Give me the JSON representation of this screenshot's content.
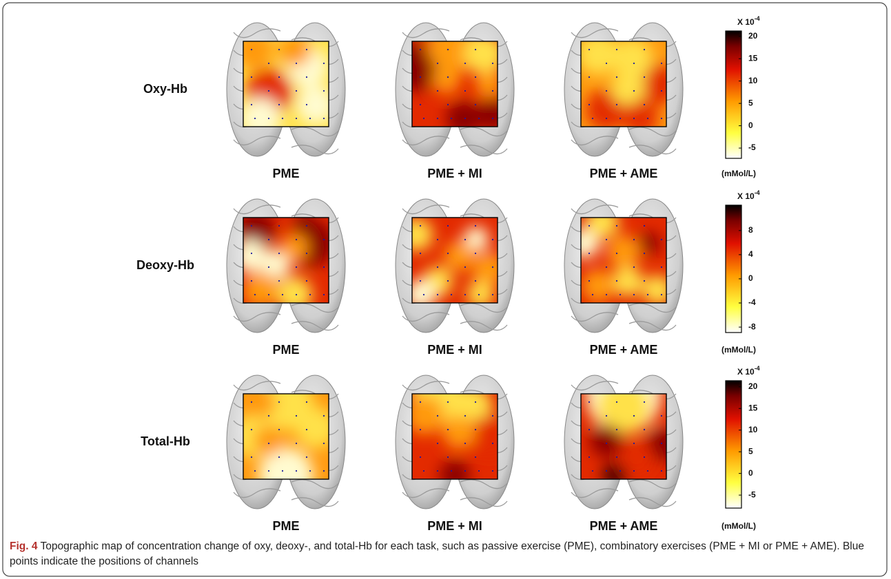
{
  "figure": {
    "rows": [
      {
        "label": "Oxy-Hb",
        "panels": [
          "PME",
          "PME + MI",
          "PME + AME"
        ],
        "colorbar": {
          "multiplier": {
            "base": "X 10",
            "exponent": "-4"
          },
          "lim": [
            -7.3,
            21.2
          ],
          "ticks": [
            -5,
            0,
            5,
            10,
            15,
            20
          ],
          "unit": "(mMol/L)"
        }
      },
      {
        "label": "Deoxy-Hb",
        "panels": [
          "PME",
          "PME + MI",
          "PME + AME"
        ],
        "colorbar": {
          "multiplier": {
            "base": "X 10",
            "exponent": "-4"
          },
          "lim": [
            -8.9,
            12.2
          ],
          "ticks": [
            -8,
            -4,
            0,
            4,
            8
          ],
          "unit": "(mMol/L)"
        }
      },
      {
        "label": "Total-Hb",
        "panels": [
          "PME",
          "PME + MI",
          "PME + AME"
        ],
        "colorbar": {
          "multiplier": {
            "base": "X 10",
            "exponent": "-4"
          },
          "lim": [
            -8.0,
            21.4
          ],
          "ticks": [
            -5,
            0,
            5,
            10,
            15,
            20
          ],
          "unit": "(mMol/L)"
        }
      }
    ],
    "caption": {
      "label": "Fig. 4",
      "text": "Topographic map of concentration change of oxy, deoxy-, and total-Hb for each task, such as passive exercise (PME), combinatory exercises (PME + MI or PME + AME). Blue points indicate the positions of channels"
    }
  }
}
